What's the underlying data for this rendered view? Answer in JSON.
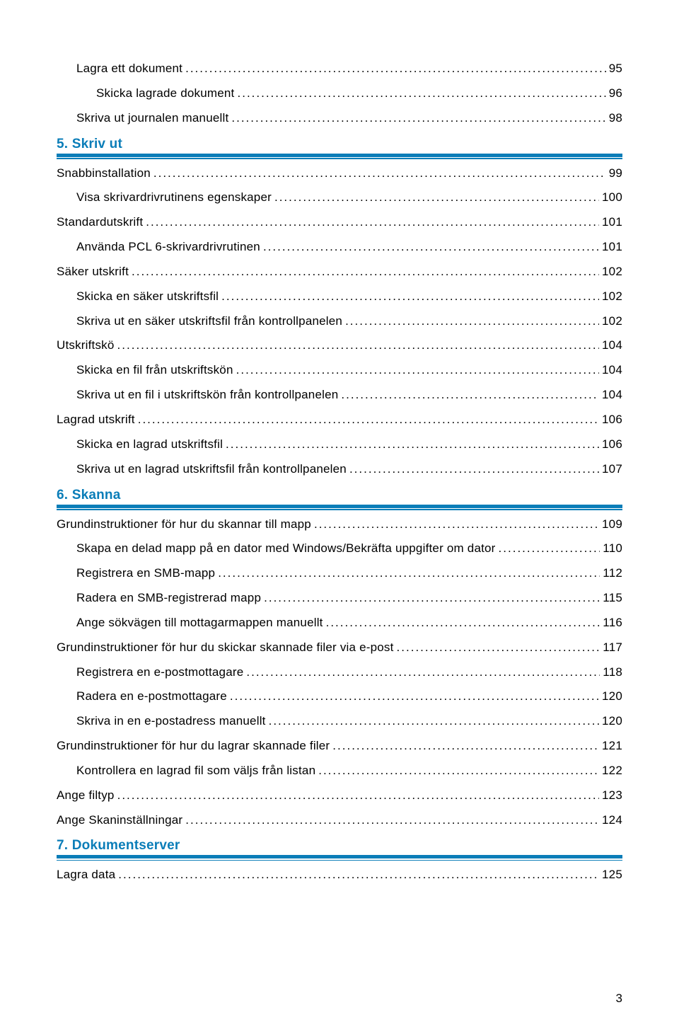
{
  "footer_page": "3",
  "colors": {
    "accent": "#0a7db8",
    "text": "#000000",
    "background": "#ffffff"
  },
  "typography": {
    "body_fontsize": 17,
    "heading_fontsize": 19,
    "heading_weight": 600
  },
  "toc": [
    {
      "type": "entry",
      "indent": 1,
      "label": "Lagra ett dokument",
      "page": "95"
    },
    {
      "type": "entry",
      "indent": 2,
      "label": "Skicka lagrade dokument",
      "page": "96"
    },
    {
      "type": "entry",
      "indent": 1,
      "label": "Skriva ut journalen manuellt",
      "page": "98"
    },
    {
      "type": "section",
      "label": "5. Skriv ut"
    },
    {
      "type": "entry",
      "indent": 0,
      "label": "Snabbinstallation",
      "page": "99"
    },
    {
      "type": "entry",
      "indent": 1,
      "label": "Visa skrivardrivrutinens egenskaper",
      "page": "100"
    },
    {
      "type": "entry",
      "indent": 0,
      "label": "Standardutskrift",
      "page": "101"
    },
    {
      "type": "entry",
      "indent": 1,
      "label": "Använda PCL 6-skrivardrivrutinen",
      "page": "101"
    },
    {
      "type": "entry",
      "indent": 0,
      "label": "Säker utskrift",
      "page": "102"
    },
    {
      "type": "entry",
      "indent": 1,
      "label": "Skicka en säker utskriftsfil",
      "page": "102"
    },
    {
      "type": "entry",
      "indent": 1,
      "label": "Skriva ut en säker utskriftsfil från kontrollpanelen",
      "page": "102"
    },
    {
      "type": "entry",
      "indent": 0,
      "label": "Utskriftskö",
      "page": "104"
    },
    {
      "type": "entry",
      "indent": 1,
      "label": "Skicka en fil från utskriftskön",
      "page": "104"
    },
    {
      "type": "entry",
      "indent": 1,
      "label": "Skriva ut en fil i utskriftskön från kontrollpanelen",
      "page": "104"
    },
    {
      "type": "entry",
      "indent": 0,
      "label": "Lagrad utskrift",
      "page": "106"
    },
    {
      "type": "entry",
      "indent": 1,
      "label": "Skicka en lagrad utskriftsfil",
      "page": "106"
    },
    {
      "type": "entry",
      "indent": 1,
      "label": "Skriva ut en lagrad utskriftsfil från kontrollpanelen",
      "page": "107"
    },
    {
      "type": "section",
      "label": "6. Skanna"
    },
    {
      "type": "entry",
      "indent": 0,
      "label": "Grundinstruktioner för hur du skannar till mapp",
      "page": "109"
    },
    {
      "type": "entry",
      "indent": 1,
      "label": "Skapa en delad mapp på en dator med Windows/Bekräfta uppgifter om dator",
      "page": "110"
    },
    {
      "type": "entry",
      "indent": 1,
      "label": "Registrera en SMB-mapp",
      "page": "112"
    },
    {
      "type": "entry",
      "indent": 1,
      "label": "Radera en SMB-registrerad mapp",
      "page": "115"
    },
    {
      "type": "entry",
      "indent": 1,
      "label": "Ange sökvägen till mottagarmappen manuellt",
      "page": "116"
    },
    {
      "type": "entry",
      "indent": 0,
      "label": "Grundinstruktioner för hur du skickar skannade filer via e-post",
      "page": "117"
    },
    {
      "type": "entry",
      "indent": 1,
      "label": "Registrera en e-postmottagare",
      "page": "118"
    },
    {
      "type": "entry",
      "indent": 1,
      "label": "Radera en e-postmottagare",
      "page": "120"
    },
    {
      "type": "entry",
      "indent": 1,
      "label": "Skriva in en e-postadress manuellt",
      "page": "120"
    },
    {
      "type": "entry",
      "indent": 0,
      "label": "Grundinstruktioner för hur du lagrar skannade filer",
      "page": "121"
    },
    {
      "type": "entry",
      "indent": 1,
      "label": "Kontrollera en lagrad fil som väljs från listan",
      "page": "122"
    },
    {
      "type": "entry",
      "indent": 0,
      "label": "Ange filtyp",
      "page": "123"
    },
    {
      "type": "entry",
      "indent": 0,
      "label": "Ange Skaninställningar",
      "page": "124"
    },
    {
      "type": "section",
      "label": "7. Dokumentserver"
    },
    {
      "type": "entry",
      "indent": 0,
      "label": "Lagra data",
      "page": "125"
    }
  ]
}
